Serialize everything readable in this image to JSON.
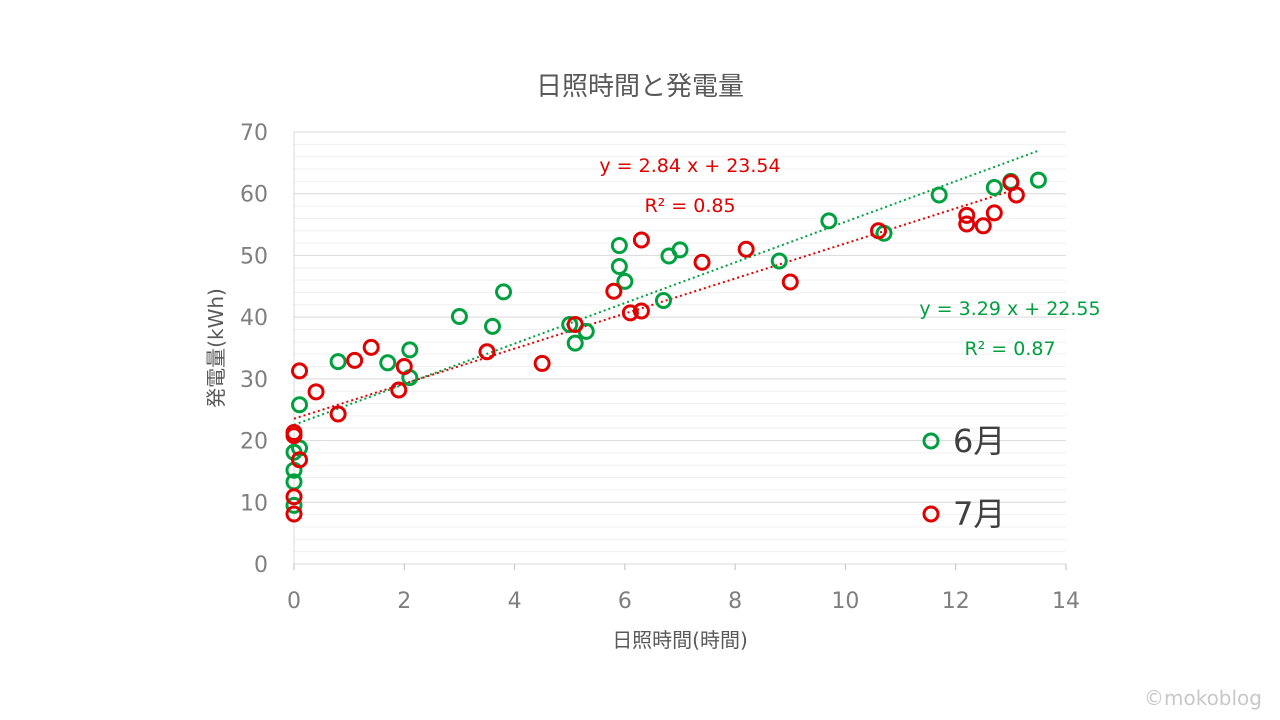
{
  "chart_data": {
    "type": "scatter",
    "title": "日照時間と発電量",
    "xlabel": "日照時間(時間)",
    "ylabel": "発電量(kWh)",
    "xlim": [
      0,
      14
    ],
    "ylim": [
      0,
      70
    ],
    "x_ticks": [
      0,
      2,
      4,
      6,
      8,
      10,
      12,
      14
    ],
    "y_ticks": [
      0,
      10,
      20,
      30,
      40,
      50,
      60,
      70
    ],
    "grid": true,
    "legend_position": "right",
    "series": [
      {
        "name": "6月",
        "color": "#00a040",
        "points": [
          [
            0,
            9.5
          ],
          [
            0,
            13.3
          ],
          [
            0,
            15.2
          ],
          [
            0,
            18.1
          ],
          [
            0.1,
            18.8
          ],
          [
            0.1,
            25.8
          ],
          [
            0.8,
            32.8
          ],
          [
            1.7,
            32.6
          ],
          [
            2.1,
            34.7
          ],
          [
            2.1,
            30.2
          ],
          [
            3.0,
            40.1
          ],
          [
            3.6,
            38.5
          ],
          [
            3.8,
            44.1
          ],
          [
            5.0,
            38.8
          ],
          [
            5.1,
            35.8
          ],
          [
            5.3,
            37.7
          ],
          [
            5.9,
            51.6
          ],
          [
            5.9,
            48.2
          ],
          [
            6.0,
            45.8
          ],
          [
            6.7,
            42.7
          ],
          [
            6.8,
            49.9
          ],
          [
            7.0,
            50.9
          ],
          [
            8.8,
            49.1
          ],
          [
            9.7,
            55.6
          ],
          [
            10.7,
            53.6
          ],
          [
            11.7,
            59.8
          ],
          [
            12.7,
            61.0
          ],
          [
            13.0,
            62.0
          ],
          [
            13.5,
            62.2
          ]
        ],
        "trendline": {
          "equation": "y = 3.29 x + 22.55",
          "r2": "R² = 0.87",
          "slope": 3.29,
          "intercept": 22.55
        }
      },
      {
        "name": "7月",
        "color": "#e00000",
        "points": [
          [
            0,
            8.1
          ],
          [
            0,
            10.9
          ],
          [
            0,
            20.8
          ],
          [
            0,
            21.3
          ],
          [
            0.1,
            16.9
          ],
          [
            0.1,
            31.3
          ],
          [
            0.4,
            27.9
          ],
          [
            0.8,
            24.3
          ],
          [
            1.1,
            33.0
          ],
          [
            1.4,
            35.1
          ],
          [
            1.9,
            28.2
          ],
          [
            2.0,
            32.0
          ],
          [
            3.5,
            34.4
          ],
          [
            4.5,
            32.5
          ],
          [
            5.1,
            38.8
          ],
          [
            5.8,
            44.2
          ],
          [
            6.1,
            40.7
          ],
          [
            6.3,
            41.0
          ],
          [
            6.3,
            52.5
          ],
          [
            7.4,
            48.9
          ],
          [
            8.2,
            51.0
          ],
          [
            9.0,
            45.7
          ],
          [
            10.6,
            54.0
          ],
          [
            12.2,
            55.1
          ],
          [
            12.2,
            56.5
          ],
          [
            12.5,
            54.8
          ],
          [
            12.7,
            56.9
          ],
          [
            13.0,
            61.8
          ],
          [
            13.1,
            59.8
          ]
        ],
        "trendline": {
          "equation": "y = 2.84 x + 23.54",
          "r2": "R² = 0.85",
          "slope": 2.84,
          "intercept": 23.54
        }
      }
    ]
  },
  "footer": {
    "watermark": "©mokoblog"
  }
}
